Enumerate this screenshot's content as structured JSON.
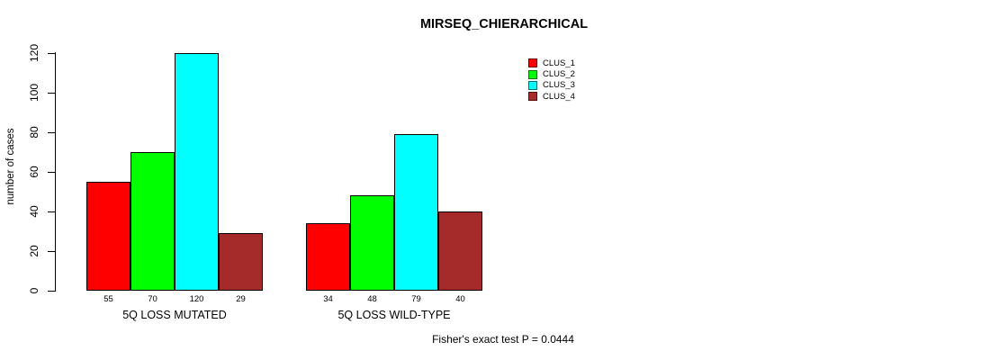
{
  "chart_data": {
    "type": "bar",
    "title": "MIRSEQ_CHIERARCHICAL",
    "ylabel": "number of cases",
    "xlabel": "",
    "categories": [
      "5Q LOSS MUTATED",
      "5Q LOSS WILD-TYPE"
    ],
    "series": [
      {
        "name": "CLUS_1",
        "color": "#FF0000",
        "values": [
          55,
          34
        ]
      },
      {
        "name": "CLUS_2",
        "color": "#00FF00",
        "values": [
          70,
          48
        ]
      },
      {
        "name": "CLUS_3",
        "color": "#00FFFF",
        "values": [
          120,
          79
        ]
      },
      {
        "name": "CLUS_4",
        "color": "#A52A2A",
        "values": [
          29,
          40
        ]
      }
    ],
    "yticks": [
      0,
      20,
      40,
      60,
      80,
      100,
      120
    ],
    "ylim": [
      0,
      120
    ],
    "grid": false,
    "bar_value_labels_shown": true,
    "legend_position": "top-right",
    "annotation": "Fisher's exact test P = 0.0444"
  }
}
